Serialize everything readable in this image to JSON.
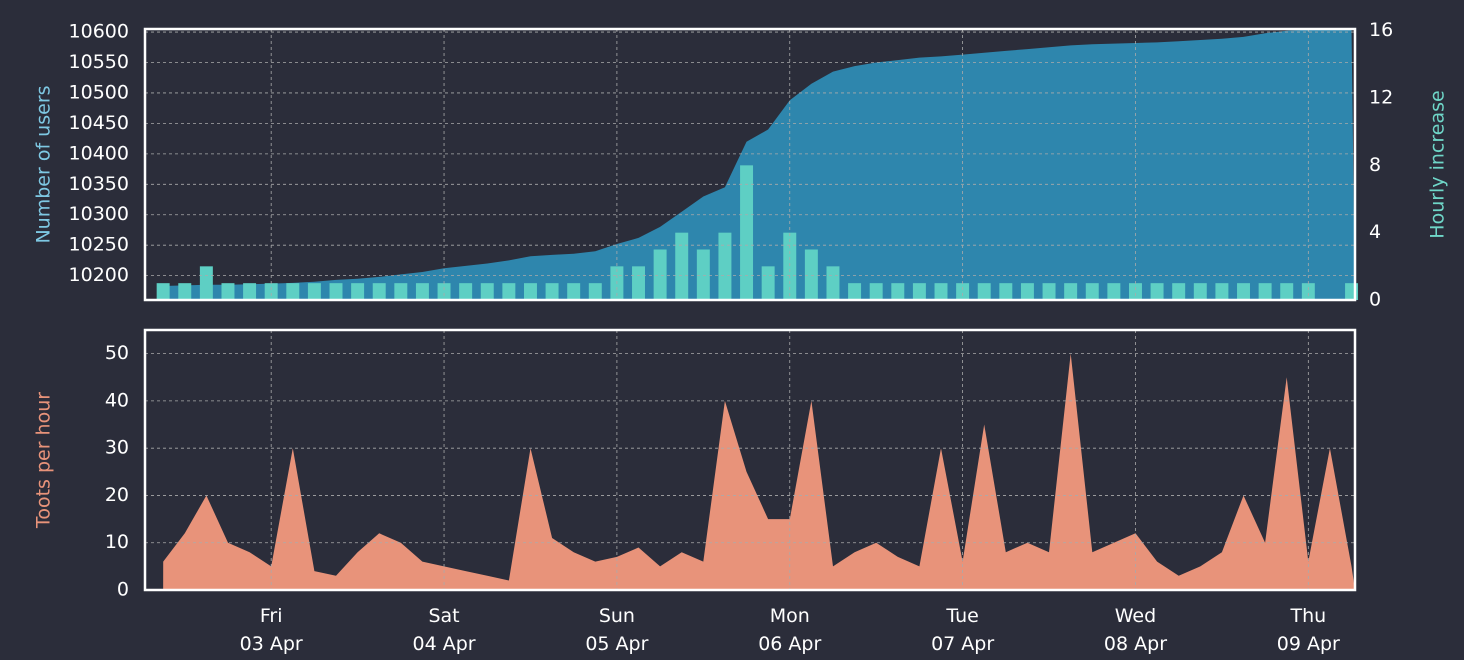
{
  "chart_data": [
    {
      "type": "area",
      "y_label": "Number of users",
      "y2_label": "Hourly increase",
      "grid": true,
      "x": [
        2.375,
        2.5,
        2.625,
        2.75,
        2.875,
        3.0,
        3.125,
        3.25,
        3.375,
        3.5,
        3.625,
        3.75,
        3.875,
        4.0,
        4.125,
        4.25,
        4.375,
        4.5,
        4.625,
        4.75,
        4.875,
        5.0,
        5.125,
        5.25,
        5.375,
        5.5,
        5.625,
        5.75,
        5.875,
        6.0,
        6.125,
        6.25,
        6.375,
        6.5,
        6.625,
        6.75,
        6.875,
        7.0,
        7.125,
        7.25,
        7.375,
        7.5,
        7.625,
        7.75,
        7.875,
        8.0,
        8.125,
        8.25,
        8.375,
        8.5,
        8.625,
        8.75,
        8.875,
        9.0,
        9.125,
        9.25
      ],
      "xlim": [
        2.27,
        9.27
      ],
      "ylim": [
        10160,
        10605
      ],
      "yticks": [
        10200,
        10250,
        10300,
        10350,
        10400,
        10450,
        10500,
        10550,
        10600
      ],
      "y2lim": [
        0,
        16.1
      ],
      "y2ticks": [
        0,
        4,
        8,
        12,
        16
      ],
      "series": [
        {
          "name": "Number of users",
          "type": "area",
          "color": "#2e86ad",
          "values": [
            10183,
            10184,
            10185,
            10185,
            10186,
            10187,
            10188,
            10190,
            10193,
            10195,
            10198,
            10202,
            10206,
            10212,
            10216,
            10220,
            10225,
            10232,
            10234,
            10236,
            10240,
            10252,
            10262,
            10280,
            10305,
            10330,
            10345,
            10420,
            10440,
            10488,
            10515,
            10535,
            10544,
            10550,
            10554,
            10558,
            10560,
            10563,
            10566,
            10569,
            10572,
            10575,
            10578,
            10580,
            10581,
            10582,
            10583,
            10585,
            10587,
            10589,
            10592,
            10598,
            10602,
            10604,
            10605,
            10605
          ]
        },
        {
          "name": "Hourly increase",
          "type": "bar",
          "axis": "y2",
          "color": "#5ecfc4",
          "values": [
            1,
            1,
            2,
            1,
            1,
            1,
            1,
            1,
            1,
            1,
            1,
            1,
            1,
            1,
            1,
            1,
            1,
            1,
            1,
            1,
            1,
            2,
            2,
            3,
            4,
            3,
            4,
            8,
            2,
            4,
            3,
            2,
            1,
            1,
            1,
            1,
            1,
            1,
            1,
            1,
            1,
            1,
            1,
            1,
            1,
            1,
            1,
            1,
            1,
            1,
            1,
            1,
            1,
            1,
            0,
            1
          ]
        }
      ]
    },
    {
      "type": "area",
      "y_label": "Toots per hour",
      "grid": true,
      "x": [
        2.375,
        2.5,
        2.625,
        2.75,
        2.875,
        3.0,
        3.125,
        3.25,
        3.375,
        3.5,
        3.625,
        3.75,
        3.875,
        4.0,
        4.125,
        4.25,
        4.375,
        4.5,
        4.625,
        4.75,
        4.875,
        5.0,
        5.125,
        5.25,
        5.375,
        5.5,
        5.625,
        5.75,
        5.875,
        6.0,
        6.125,
        6.25,
        6.375,
        6.5,
        6.625,
        6.75,
        6.875,
        7.0,
        7.125,
        7.25,
        7.375,
        7.5,
        7.625,
        7.75,
        7.875,
        8.0,
        8.125,
        8.25,
        8.375,
        8.5,
        8.625,
        8.75,
        8.875,
        9.0,
        9.125,
        9.25
      ],
      "xlim": [
        2.27,
        9.27
      ],
      "xticks": [
        {
          "value": 3,
          "label": "Fri 03 Apr"
        },
        {
          "value": 4,
          "label": "Sat 04 Apr"
        },
        {
          "value": 5,
          "label": "Sun 05 Apr"
        },
        {
          "value": 6,
          "label": "Mon 06 Apr"
        },
        {
          "value": 7,
          "label": "Tue 07 Apr"
        },
        {
          "value": 8,
          "label": "Wed 08 Apr"
        },
        {
          "value": 9,
          "label": "Thu 09 Apr"
        }
      ],
      "ylim": [
        0,
        55
      ],
      "yticks": [
        0,
        10,
        20,
        30,
        40,
        50
      ],
      "series": [
        {
          "name": "Toots per hour",
          "type": "area",
          "color": "#e8937a",
          "values": [
            6,
            12,
            20,
            10,
            8,
            5,
            30,
            4,
            3,
            8,
            12,
            10,
            6,
            5,
            4,
            3,
            2,
            30,
            11,
            8,
            6,
            7,
            9,
            5,
            8,
            6,
            40,
            25,
            15,
            15,
            40,
            5,
            8,
            10,
            7,
            5,
            30,
            6,
            35,
            8,
            10,
            8,
            50,
            8,
            10,
            12,
            6,
            3,
            5,
            8,
            20,
            10,
            45,
            6,
            30,
            5
          ]
        }
      ]
    }
  ]
}
